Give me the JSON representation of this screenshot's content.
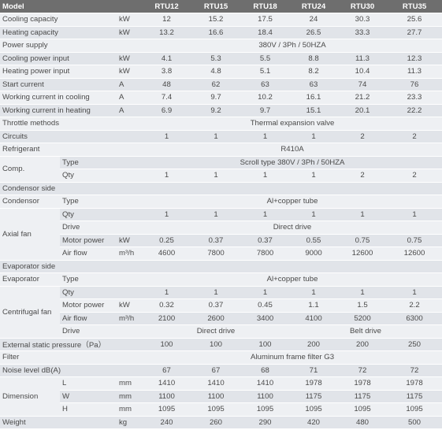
{
  "header": {
    "model": "Model",
    "units": [
      "RTU12",
      "RTU15",
      "RTU18",
      "RTU24",
      "RTU30",
      "RTU35"
    ]
  },
  "rows": {
    "cooling_capacity": {
      "label": "Cooling capacity",
      "unit": "kW",
      "values": [
        "12",
        "15.2",
        "17.5",
        "24",
        "30.3",
        "25.6"
      ]
    },
    "heating_capacity": {
      "label": "Heating capacity",
      "unit": "kW",
      "values": [
        "13.2",
        "16.6",
        "18.4",
        "26.5",
        "33.3",
        "27.7"
      ]
    },
    "power_supply": {
      "label": "Power supply",
      "value": "380V / 3Ph / 50HZA"
    },
    "cooling_power_input": {
      "label": "Cooling power input",
      "unit": "kW",
      "values": [
        "4.1",
        "5.3",
        "5.5",
        "8.8",
        "11.3",
        "12.3"
      ]
    },
    "heating_power_input": {
      "label": "Heating power input",
      "unit": "kW",
      "values": [
        "3.8",
        "4.8",
        "5.1",
        "8.2",
        "10.4",
        "11.3"
      ]
    },
    "start_current": {
      "label": "Start current",
      "unit": "A",
      "values": [
        "48",
        "62",
        "63",
        "63",
        "74",
        "76"
      ]
    },
    "working_current_cooling": {
      "label": "Working current in cooling",
      "unit": "A",
      "values": [
        "7.4",
        "9.7",
        "10.2",
        "16.1",
        "21.2",
        "23.3"
      ]
    },
    "working_current_heating": {
      "label": "Working current in heating",
      "unit": "A",
      "values": [
        "6.9",
        "9.2",
        "9.7",
        "15.1",
        "20.1",
        "22.2"
      ]
    },
    "throttle_methods": {
      "label": "Throttle methods",
      "value": "Thermal expansion valve"
    },
    "circuits": {
      "label": "Circuits",
      "values": [
        "1",
        "1",
        "1",
        "1",
        "2",
        "2"
      ]
    },
    "refrigerant": {
      "label": "Refrigerant",
      "value": "R410A"
    },
    "comp": {
      "label": "Comp.",
      "type_label": "Type",
      "type_value": "Scroll type    380V / 3Ph / 50HZA",
      "qty_label": "Qty",
      "qty_values": [
        "1",
        "1",
        "1",
        "1",
        "2",
        "2"
      ]
    },
    "condensor_side": {
      "label": "Condensor side"
    },
    "condensor": {
      "label": "Condensor",
      "type_label": "Type",
      "type_value": "Al+copper tube"
    },
    "axial_fan": {
      "label": "Axial fan",
      "qty_label": "Qty",
      "qty_values": [
        "1",
        "1",
        "1",
        "1",
        "1",
        "1"
      ],
      "drive_label": "Drive",
      "drive_value": "Direct drive",
      "motor_label": "Motor power",
      "motor_unit": "kW",
      "motor_values": [
        "0.25",
        "0.37",
        "0.37",
        "0.55",
        "0.75",
        "0.75"
      ],
      "air_label": "Air flow",
      "air_unit": "m³/h",
      "air_values": [
        "4600",
        "7800",
        "7800",
        "9000",
        "12600",
        "12600"
      ]
    },
    "evaporator_side": {
      "label": "Evaporator side"
    },
    "evaporator": {
      "label": "Evaporator",
      "type_label": "Type",
      "type_value": "Al+copper tube"
    },
    "centrifugal_fan": {
      "label": "Centrifugal fan",
      "qty_label": "Qty",
      "qty_values": [
        "1",
        "1",
        "1",
        "1",
        "1",
        "1"
      ],
      "motor_label": "Motor power",
      "motor_unit": "kW",
      "motor_values": [
        "0.32",
        "0.37",
        "0.45",
        "1.1",
        "1.5",
        "2.2"
      ],
      "air_label": "Air flow",
      "air_unit": "m³/h",
      "air_values": [
        "2100",
        "2600",
        "3400",
        "4100",
        "5200",
        "6300"
      ],
      "drive_label": "Drive",
      "drive_direct": "Direct drive",
      "drive_belt": "Belt drive"
    },
    "external_static_pressure": {
      "label": "External static pressure（Pa）",
      "values": [
        "100",
        "100",
        "100",
        "200",
        "200",
        "250"
      ]
    },
    "filter": {
      "label": "Filter",
      "value": "Aluminum frame filter G3"
    },
    "noise_level": {
      "label": "Noise level dB(A)",
      "values": [
        "67",
        "67",
        "68",
        "71",
        "72",
        "72"
      ]
    },
    "dimension": {
      "label": "Dimension",
      "l_label": "L",
      "w_label": "W",
      "h_label": "H",
      "unit": "mm",
      "l_values": [
        "1410",
        "1410",
        "1410",
        "1978",
        "1978",
        "1978"
      ],
      "w_values": [
        "1100",
        "1100",
        "1100",
        "1175",
        "1175",
        "1175"
      ],
      "h_values": [
        "1095",
        "1095",
        "1095",
        "1095",
        "1095",
        "1095"
      ]
    },
    "weight": {
      "label": "Weight",
      "unit": "kg",
      "values": [
        "240",
        "260",
        "290",
        "420",
        "480",
        "500"
      ]
    }
  }
}
